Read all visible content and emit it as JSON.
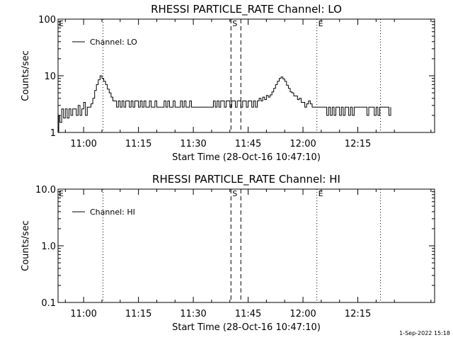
{
  "footer_timestamp": "1-Sep-2022 15:18",
  "chart_data": [
    {
      "type": "line",
      "title": "RHESSI PARTICLE_RATE Channel: LO",
      "xlabel": "Start Time (28-Oct-16 10:47:10)",
      "ylabel": "Counts/sec",
      "yscale": "log",
      "ylim": [
        1,
        100
      ],
      "y_ticks": [
        1,
        10,
        100
      ],
      "y_tick_labels": [
        "1",
        "10",
        "100"
      ],
      "xlim_minutes": [
        -7,
        96
      ],
      "x_ticks": [
        0,
        15,
        30,
        45,
        60,
        75
      ],
      "x_tick_labels": [
        "11:00",
        "11:15",
        "11:30",
        "11:45",
        "12:00",
        "12:15"
      ],
      "legend": {
        "placement": "top-left",
        "label": "Channel: LO"
      },
      "markers": [
        {
          "label": "E",
          "x": -7,
          "style": "dotted"
        },
        {
          "label": "",
          "x": 5.3,
          "style": "dotted"
        },
        {
          "label": "S",
          "x": 40.3,
          "style": "dashed"
        },
        {
          "label": "",
          "x": 43.0,
          "style": "dashed"
        },
        {
          "label": "E",
          "x": 63.8,
          "style": "dotted"
        },
        {
          "label": "",
          "x": 81.2,
          "style": "dotted"
        }
      ],
      "series": [
        {
          "values": [
            [
              -7.0,
              1.0
            ],
            [
              -6.8,
              2.0
            ],
            [
              -6.5,
              1.5
            ],
            [
              -6.0,
              2.6
            ],
            [
              -5.5,
              1.8
            ],
            [
              -5.0,
              2.6
            ],
            [
              -4.5,
              1.8
            ],
            [
              -4.0,
              2.6
            ],
            [
              -3.5,
              2.0
            ],
            [
              -3.0,
              2.6
            ],
            [
              -2.5,
              2.6
            ],
            [
              -2.0,
              2.0
            ],
            [
              -1.5,
              3.0
            ],
            [
              -1.0,
              2.0
            ],
            [
              -0.5,
              2.6
            ],
            [
              0.0,
              3.4
            ],
            [
              0.5,
              2.0
            ],
            [
              1.0,
              2.8
            ],
            [
              1.5,
              2.8
            ],
            [
              2.0,
              3.2
            ],
            [
              2.5,
              4.0
            ],
            [
              3.0,
              5.5
            ],
            [
              3.5,
              7.0
            ],
            [
              4.0,
              8.5
            ],
            [
              4.5,
              10.0
            ],
            [
              5.0,
              9.0
            ],
            [
              5.5,
              8.0
            ],
            [
              6.0,
              7.0
            ],
            [
              6.5,
              5.8
            ],
            [
              7.0,
              5.0
            ],
            [
              7.5,
              4.2
            ],
            [
              8.0,
              3.6
            ],
            [
              8.5,
              3.6
            ],
            [
              9.0,
              2.8
            ],
            [
              9.5,
              3.6
            ],
            [
              10.0,
              2.8
            ],
            [
              10.5,
              3.6
            ],
            [
              11.0,
              2.8
            ],
            [
              11.5,
              3.6
            ],
            [
              12.0,
              3.6
            ],
            [
              12.5,
              2.8
            ],
            [
              13.0,
              3.6
            ],
            [
              13.5,
              2.8
            ],
            [
              14.0,
              3.6
            ],
            [
              14.5,
              3.6
            ],
            [
              15.0,
              2.8
            ],
            [
              15.5,
              3.6
            ],
            [
              16.0,
              2.8
            ],
            [
              16.5,
              3.6
            ],
            [
              17.0,
              2.8
            ],
            [
              17.5,
              2.8
            ],
            [
              18.0,
              3.6
            ],
            [
              18.5,
              2.8
            ],
            [
              19.0,
              2.8
            ],
            [
              19.5,
              3.6
            ],
            [
              20.0,
              2.8
            ],
            [
              20.5,
              2.8
            ],
            [
              21.0,
              2.8
            ],
            [
              21.5,
              2.8
            ],
            [
              22.0,
              3.6
            ],
            [
              22.5,
              2.8
            ],
            [
              23.0,
              3.6
            ],
            [
              23.5,
              2.8
            ],
            [
              24.0,
              2.8
            ],
            [
              24.5,
              3.6
            ],
            [
              25.0,
              2.8
            ],
            [
              25.5,
              2.8
            ],
            [
              26.0,
              2.8
            ],
            [
              26.5,
              3.6
            ],
            [
              27.0,
              2.8
            ],
            [
              27.5,
              3.6
            ],
            [
              28.0,
              2.8
            ],
            [
              28.5,
              2.8
            ],
            [
              29.0,
              3.6
            ],
            [
              29.5,
              2.8
            ],
            [
              30.0,
              2.8
            ],
            [
              30.5,
              2.8
            ],
            [
              31.0,
              2.8
            ],
            [
              31.5,
              2.8
            ],
            [
              32.0,
              2.8
            ],
            [
              32.5,
              2.8
            ],
            [
              33.0,
              2.8
            ],
            [
              33.5,
              2.8
            ],
            [
              34.0,
              2.8
            ],
            [
              34.5,
              2.8
            ],
            [
              35.0,
              2.8
            ],
            [
              35.5,
              3.6
            ],
            [
              36.0,
              2.8
            ],
            [
              36.5,
              3.6
            ],
            [
              37.0,
              2.8
            ],
            [
              37.5,
              3.6
            ],
            [
              38.0,
              3.6
            ],
            [
              38.5,
              2.8
            ],
            [
              39.0,
              3.6
            ],
            [
              39.5,
              3.6
            ],
            [
              40.0,
              2.8
            ],
            [
              40.5,
              3.6
            ],
            [
              41.0,
              3.6
            ],
            [
              41.5,
              2.8
            ],
            [
              42.0,
              3.6
            ],
            [
              42.5,
              3.6
            ],
            [
              43.0,
              2.8
            ],
            [
              43.5,
              3.6
            ],
            [
              44.0,
              3.6
            ],
            [
              44.5,
              2.8
            ],
            [
              45.0,
              3.6
            ],
            [
              45.5,
              3.6
            ],
            [
              46.0,
              2.8
            ],
            [
              46.5,
              3.6
            ],
            [
              47.0,
              2.8
            ],
            [
              47.5,
              3.6
            ],
            [
              48.0,
              4.0
            ],
            [
              48.5,
              3.6
            ],
            [
              49.0,
              4.2
            ],
            [
              49.5,
              3.8
            ],
            [
              50.0,
              4.5
            ],
            [
              50.5,
              4.2
            ],
            [
              51.0,
              4.6
            ],
            [
              51.5,
              5.2
            ],
            [
              52.0,
              6.0
            ],
            [
              52.5,
              7.0
            ],
            [
              53.0,
              8.0
            ],
            [
              53.5,
              9.0
            ],
            [
              54.0,
              9.5
            ],
            [
              54.5,
              8.8
            ],
            [
              55.0,
              8.0
            ],
            [
              55.5,
              6.8
            ],
            [
              56.0,
              6.0
            ],
            [
              56.5,
              5.2
            ],
            [
              57.0,
              5.0
            ],
            [
              57.5,
              4.4
            ],
            [
              58.0,
              4.4
            ],
            [
              58.5,
              3.8
            ],
            [
              59.0,
              4.0
            ],
            [
              59.5,
              3.4
            ],
            [
              60.0,
              3.4
            ],
            [
              60.5,
              2.8
            ],
            [
              61.0,
              3.2
            ],
            [
              61.5,
              3.6
            ],
            [
              62.0,
              3.2
            ],
            [
              62.5,
              2.8
            ],
            [
              63.0,
              2.8
            ],
            [
              63.5,
              2.8
            ],
            [
              64.0,
              2.8
            ],
            [
              65.0,
              2.8
            ],
            [
              66.0,
              2.8
            ],
            [
              66.5,
              2.0
            ],
            [
              67.0,
              2.8
            ],
            [
              67.5,
              2.0
            ],
            [
              68.0,
              2.8
            ],
            [
              68.5,
              2.0
            ],
            [
              69.0,
              2.8
            ],
            [
              69.5,
              2.8
            ],
            [
              70.0,
              2.0
            ],
            [
              70.5,
              2.8
            ],
            [
              71.0,
              2.0
            ],
            [
              71.5,
              2.8
            ],
            [
              72.0,
              2.8
            ],
            [
              72.5,
              2.0
            ],
            [
              73.0,
              2.8
            ],
            [
              73.5,
              2.0
            ],
            [
              74.0,
              2.8
            ],
            [
              75.0,
              2.8
            ],
            [
              76.0,
              2.8
            ],
            [
              77.0,
              2.8
            ],
            [
              77.5,
              2.0
            ],
            [
              78.0,
              2.8
            ],
            [
              79.0,
              2.8
            ],
            [
              79.5,
              2.0
            ],
            [
              80.0,
              2.8
            ],
            [
              80.5,
              2.0
            ],
            [
              81.0,
              2.8
            ],
            [
              82.0,
              2.8
            ],
            [
              83.0,
              2.8
            ],
            [
              83.5,
              2.0
            ],
            [
              84.0,
              2.8
            ]
          ]
        }
      ]
    },
    {
      "type": "line",
      "title": "RHESSI PARTICLE_RATE Channel: HI",
      "xlabel": "Start Time (28-Oct-16 10:47:10)",
      "ylabel": "Counts/sec",
      "yscale": "log",
      "ylim": [
        0.1,
        10
      ],
      "y_ticks": [
        0.1,
        1,
        10
      ],
      "y_tick_labels": [
        "0.1",
        "1.0",
        "10.0"
      ],
      "xlim_minutes": [
        -7,
        96
      ],
      "x_ticks": [
        0,
        15,
        30,
        45,
        60,
        75
      ],
      "x_tick_labels": [
        "11:00",
        "11:15",
        "11:30",
        "11:45",
        "12:00",
        "12:15"
      ],
      "legend": {
        "placement": "top-left",
        "label": "Channel: HI"
      },
      "markers": [
        {
          "label": "E",
          "x": -7,
          "style": "dotted"
        },
        {
          "label": "",
          "x": 5.3,
          "style": "dotted"
        },
        {
          "label": "S",
          "x": 40.3,
          "style": "dashed"
        },
        {
          "label": "",
          "x": 43.0,
          "style": "dashed"
        },
        {
          "label": "E",
          "x": 63.8,
          "style": "dotted"
        },
        {
          "label": "",
          "x": 81.2,
          "style": "dotted"
        }
      ],
      "series": [
        {
          "values": []
        }
      ]
    }
  ]
}
